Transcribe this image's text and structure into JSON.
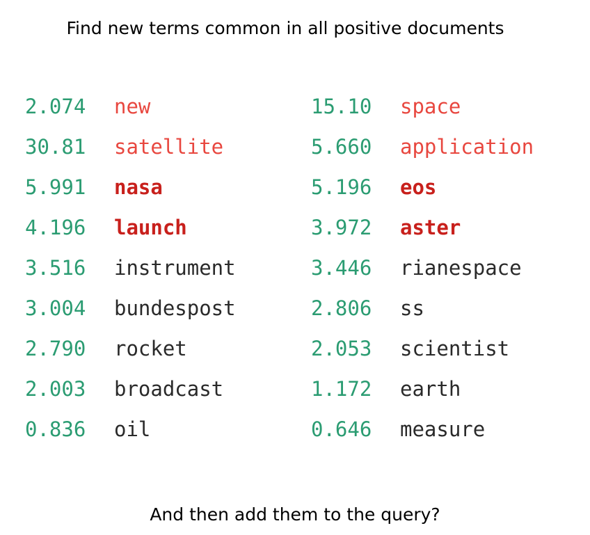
{
  "title": "Find new terms common in all positive documents",
  "footer": "And then add them to the query?",
  "colors": {
    "score": "#2b9c72",
    "term_red": "#e8473f",
    "term_bold_red": "#c8201c",
    "term_plain": "#2a2a2a"
  },
  "left": [
    {
      "score": "2.074",
      "term": "new",
      "style": "red"
    },
    {
      "score": "30.81",
      "term": "satellite",
      "style": "red"
    },
    {
      "score": "5.991",
      "term": "nasa",
      "style": "bold"
    },
    {
      "score": "4.196",
      "term": "launch",
      "style": "bold"
    },
    {
      "score": "3.516",
      "term": "instrument",
      "style": "plain"
    },
    {
      "score": "3.004",
      "term": "bundespost",
      "style": "plain"
    },
    {
      "score": "2.790",
      "term": "rocket",
      "style": "plain"
    },
    {
      "score": "2.003",
      "term": "broadcast",
      "style": "plain"
    },
    {
      "score": "0.836",
      "term": "oil",
      "style": "plain"
    }
  ],
  "right": [
    {
      "score": "15.10",
      "term": "space",
      "style": "red"
    },
    {
      "score": "5.660",
      "term": "application",
      "style": "red"
    },
    {
      "score": "5.196",
      "term": "eos",
      "style": "bold"
    },
    {
      "score": "3.972",
      "term": "aster",
      "style": "bold"
    },
    {
      "score": "3.446",
      "term": "rianespace",
      "style": "plain"
    },
    {
      "score": "2.806",
      "term": "ss",
      "style": "plain"
    },
    {
      "score": "2.053",
      "term": "scientist",
      "style": "plain"
    },
    {
      "score": "1.172",
      "term": "earth",
      "style": "plain"
    },
    {
      "score": "0.646",
      "term": "measure",
      "style": "plain"
    }
  ]
}
